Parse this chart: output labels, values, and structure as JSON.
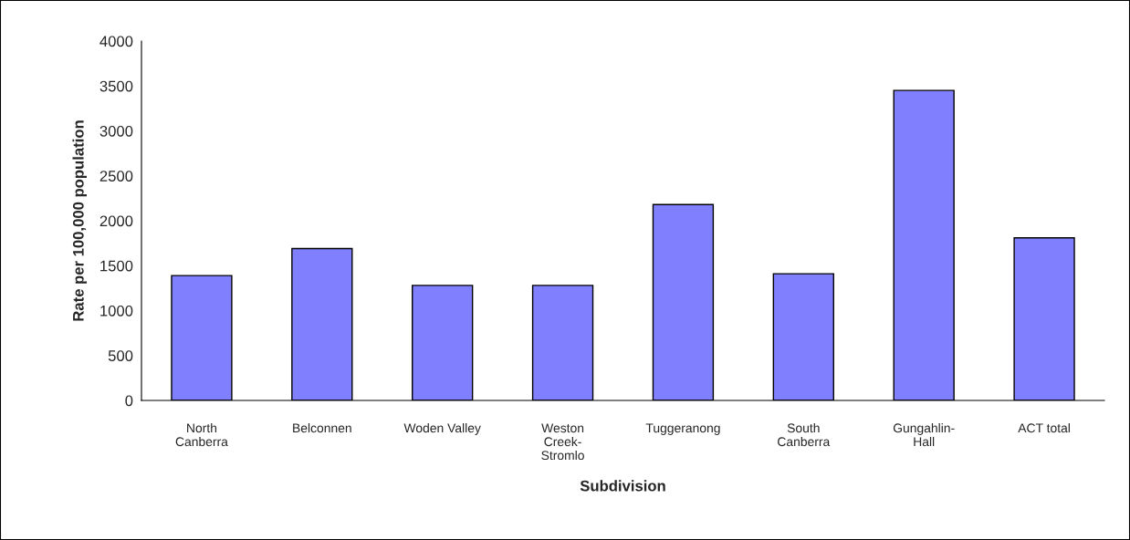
{
  "chart_data": {
    "type": "bar",
    "xlabel": "Subdivision",
    "ylabel": "Rate per 100,000 population",
    "categories": [
      "North\nCanberra",
      "Belconnen",
      "Woden Valley",
      "Weston\nCreek-\nStromlo",
      "Tuggeranong",
      "South\nCanberra",
      "Gungahlin-\nHall",
      "ACT total"
    ],
    "values": [
      1390,
      1690,
      1280,
      1280,
      2180,
      1410,
      3450,
      1810
    ],
    "color": "#8080ff",
    "ylim": [
      0,
      4000
    ],
    "yticks": [
      0,
      500,
      1000,
      1500,
      2000,
      2500,
      3000,
      3500,
      4000
    ],
    "grid": false,
    "legend": false
  }
}
